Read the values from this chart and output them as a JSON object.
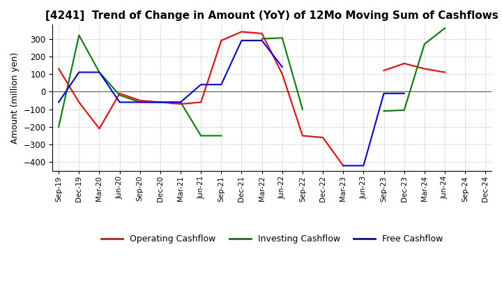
{
  "title": "[4241]  Trend of Change in Amount (YoY) of 12Mo Moving Sum of Cashflows",
  "ylabel": "Amount (million yen)",
  "ylim": [
    -450,
    380
  ],
  "yticks": [
    -400,
    -300,
    -200,
    -100,
    0,
    100,
    200,
    300
  ],
  "x_labels": [
    "Sep-19",
    "Dec-19",
    "Mar-20",
    "Jun-20",
    "Sep-20",
    "Dec-20",
    "Mar-21",
    "Jun-21",
    "Sep-21",
    "Dec-21",
    "Mar-22",
    "Jun-22",
    "Sep-22",
    "Dec-22",
    "Mar-23",
    "Jun-23",
    "Sep-23",
    "Dec-23",
    "Mar-24",
    "Jun-24",
    "Sep-24",
    "Dec-24"
  ],
  "operating_color": "#ff0000",
  "investing_color": "#008000",
  "free_color": "#0000ff",
  "background_color": "#ffffff",
  "grid_color": "#b0b0b0",
  "title_fontsize": 11,
  "legend_labels": [
    "Operating Cashflow",
    "Investing Cashflow",
    "Free Cashflow"
  ]
}
